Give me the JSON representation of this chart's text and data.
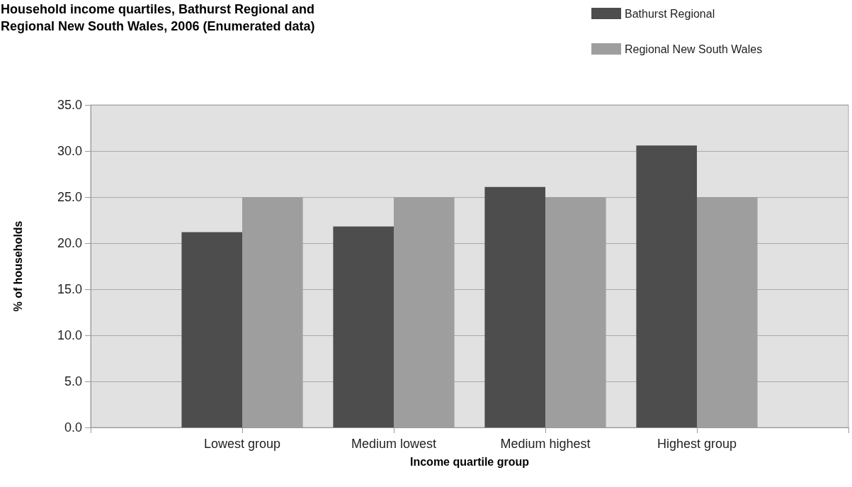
{
  "chart_data": {
    "type": "bar",
    "title": "Household income quartiles, Bathurst Regional and\nRegional New South Wales, 2006 (Enumerated data)",
    "xlabel": "Income quartile group",
    "ylabel": "% of households",
    "categories": [
      null,
      "Lowest group",
      "Medium lowest",
      "Medium highest",
      "Highest group",
      null
    ],
    "series": [
      {
        "name": "Bathurst Regional",
        "color": "#4d4d4d",
        "values": [
          null,
          21.2,
          21.8,
          26.1,
          30.6,
          null
        ]
      },
      {
        "name": "Regional New South Wales",
        "color": "#9e9e9e",
        "values": [
          null,
          25.0,
          25.0,
          25.0,
          25.0,
          null
        ]
      }
    ],
    "ylim": [
      0,
      35
    ],
    "yticks": [
      {
        "value": 0,
        "label": "0.0"
      },
      {
        "value": 5,
        "label": "5.0"
      },
      {
        "value": 10,
        "label": "10.0"
      },
      {
        "value": 15,
        "label": "15.0"
      },
      {
        "value": 20,
        "label": "20.0"
      },
      {
        "value": 25,
        "label": "25.0"
      },
      {
        "value": 30,
        "label": "30.0"
      },
      {
        "value": 35,
        "label": "35.0"
      }
    ],
    "grid": "y",
    "legend": "top right"
  }
}
